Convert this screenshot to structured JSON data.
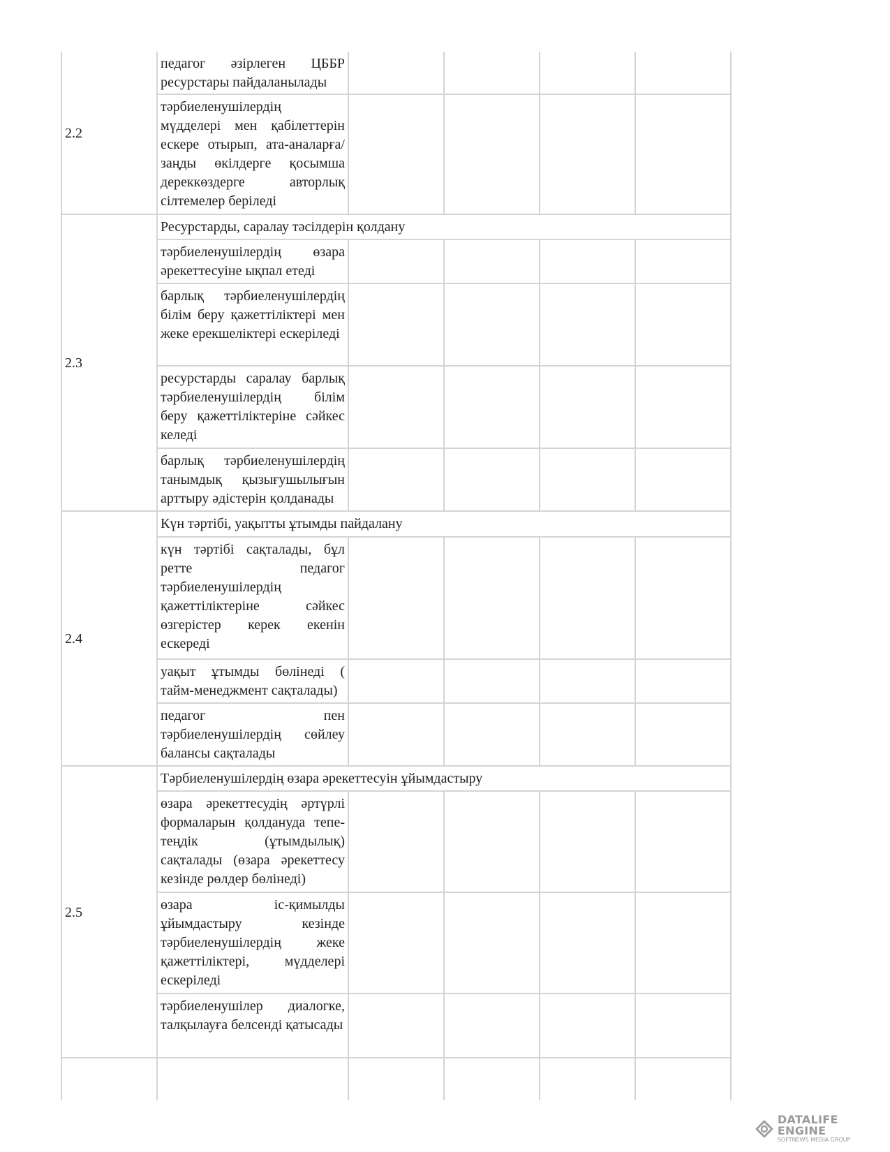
{
  "sections": [
    {
      "number": "2.2",
      "items": [
        "педагог әзірлеген ЦББР ресурстары пайдаланылады",
        "тәрбиеленушілердің мүдделері мен қабілеттерін ескере отырып, ата-аналарға/ заңды өкілдерге қосымша дереккөздерге авторлық сілтемелер беріледі"
      ]
    },
    {
      "number": "2.3",
      "header": "Ресурстарды, саралау тәсілдерін қолдану",
      "items": [
        "тәрбиеленушілердің өзара әрекеттесуіне ықпал етеді",
        "барлық тәрбиеленушілердің білім беру қажеттіліктері мен жеке ерекшеліктері ескеріледі",
        "ресурстарды саралау барлық тәрбиеленушілердің білім беру қажеттіліктеріне сәйкес келеді",
        "барлық тәрбиеленушілердің танымдық қызығушылығын арттыру әдістерін қолданады"
      ]
    },
    {
      "number": "2.4",
      "header": "Күн тәртібі, уақытты ұтымды пайдалану",
      "items": [
        "күн тәртібі сақталады, бұл ретте педагог тәрбиеленушілердің қажеттіліктеріне сәйкес өзгерістер керек екенін ескереді",
        "уақыт ұтымды бөлінеді ( тайм-менеджмент сақталады)",
        "педагог пен тәрбиеленушілердің сөйлеу балансы сақталады"
      ]
    },
    {
      "number": "2.5",
      "header": "Тәрбиеленушілердің өзара әрекеттесуін ұйымдастыру",
      "items": [
        "өзара әрекеттесудің әртүрлі формаларын қолдануда тепе-теңдік (ұтымдылық) сақталады (өзара әрекеттесу кезінде рөлдер бөлінеді)",
        "өзара іс-қимылды ұйымдастыру кезінде тәрбиеленушілердің жеке қажеттіліктері, мүдделері ескеріледі",
        "тәрбиеленушілер диалогке, талқылауға белсенді қатысады"
      ]
    }
  ],
  "watermark": {
    "title": "DATALIFE ENGINE",
    "subtitle": "SOFTNEWS MEDIA GROUP"
  }
}
